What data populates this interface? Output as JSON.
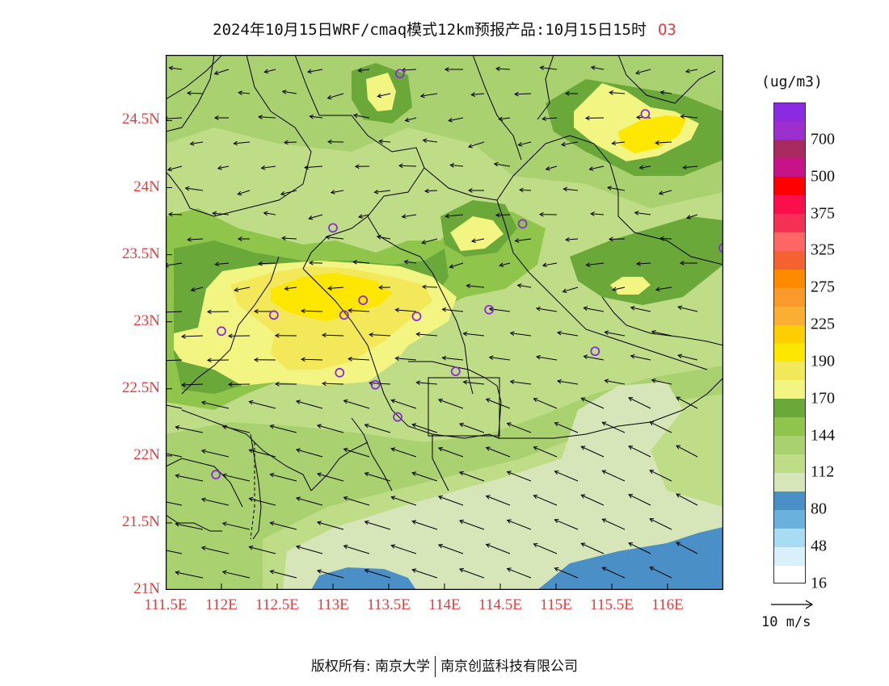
{
  "title": {
    "text": "2024年10月15日WRF/cmaq模式12km预报产品:10月15日15时",
    "species": "O3"
  },
  "map": {
    "lon_range": [
      111.5,
      116.5
    ],
    "lat_range": [
      21.0,
      24.99
    ],
    "colors": {
      "c80_112": "#d6e6b9",
      "c112_128": "#bfdc86",
      "c128_144": "#8fc54b",
      "c144_155": "#6aa83a",
      "c155_170": "#f3f582",
      "c170_180": "#f2e85a",
      "c180_190": "#fde600",
      "c48_80": "#4a8fc6",
      "boundary": "#000000",
      "station": "#8a2be2"
    },
    "x_ticks": [
      {
        "value": 111.5,
        "label": "111.5E"
      },
      {
        "value": 112.0,
        "label": "112E"
      },
      {
        "value": 112.5,
        "label": "112.5E"
      },
      {
        "value": 113.0,
        "label": "113E"
      },
      {
        "value": 113.5,
        "label": "113.5E"
      },
      {
        "value": 114.0,
        "label": "114E"
      },
      {
        "value": 114.5,
        "label": "114.5E"
      },
      {
        "value": 115.0,
        "label": "115E"
      },
      {
        "value": 115.5,
        "label": "115.5E"
      },
      {
        "value": 116.0,
        "label": "116E"
      }
    ],
    "y_ticks": [
      {
        "value": 24.5,
        "label": "24.5N"
      },
      {
        "value": 24.0,
        "label": "24N"
      },
      {
        "value": 23.5,
        "label": "23.5N"
      },
      {
        "value": 23.0,
        "label": "23N"
      },
      {
        "value": 22.5,
        "label": "22.5N"
      },
      {
        "value": 22.0,
        "label": "22N"
      },
      {
        "value": 21.5,
        "label": "21.5N"
      },
      {
        "value": 21.0,
        "label": "21N"
      }
    ],
    "stations": [
      {
        "lon": 113.6,
        "lat": 24.85
      },
      {
        "lon": 115.8,
        "lat": 24.55
      },
      {
        "lon": 113.0,
        "lat": 23.7
      },
      {
        "lon": 114.7,
        "lat": 23.73
      },
      {
        "lon": 116.5,
        "lat": 23.55
      },
      {
        "lon": 112.0,
        "lat": 22.93
      },
      {
        "lon": 112.47,
        "lat": 23.05
      },
      {
        "lon": 113.1,
        "lat": 23.05
      },
      {
        "lon": 113.27,
        "lat": 23.16
      },
      {
        "lon": 113.75,
        "lat": 23.04
      },
      {
        "lon": 114.4,
        "lat": 23.09
      },
      {
        "lon": 115.35,
        "lat": 22.78
      },
      {
        "lon": 113.06,
        "lat": 22.62
      },
      {
        "lon": 113.38,
        "lat": 22.53
      },
      {
        "lon": 114.1,
        "lat": 22.63
      },
      {
        "lon": 113.58,
        "lat": 22.29
      },
      {
        "lon": 111.95,
        "lat": 21.86
      }
    ]
  },
  "colorbar": {
    "unit": "(ug/m3)",
    "segments": [
      {
        "color": "#ffffff",
        "label": "16"
      },
      {
        "color": "#d9f0fb",
        "label": ""
      },
      {
        "color": "#a8dcf2",
        "label": "48"
      },
      {
        "color": "#6bb1de",
        "label": ""
      },
      {
        "color": "#4a8fc6",
        "label": "80"
      },
      {
        "color": "#d6e6b9",
        "label": ""
      },
      {
        "color": "#bfdc86",
        "label": "112"
      },
      {
        "color": "#a9d16f",
        "label": ""
      },
      {
        "color": "#8fc54b",
        "label": "144"
      },
      {
        "color": "#6aa83a",
        "label": ""
      },
      {
        "color": "#f3f582",
        "label": "170"
      },
      {
        "color": "#f2e85a",
        "label": ""
      },
      {
        "color": "#fde600",
        "label": "190"
      },
      {
        "color": "#fecf00",
        "label": ""
      },
      {
        "color": "#fbae34",
        "label": "225"
      },
      {
        "color": "#fb9a2c",
        "label": ""
      },
      {
        "color": "#fd8a00",
        "label": "275"
      },
      {
        "color": "#f46232",
        "label": ""
      },
      {
        "color": "#fe6565",
        "label": "325"
      },
      {
        "color": "#f63054",
        "label": ""
      },
      {
        "color": "#fb0e4c",
        "label": "375"
      },
      {
        "color": "#ff0000",
        "label": ""
      },
      {
        "color": "#c81386",
        "label": "500"
      },
      {
        "color": "#a8295f",
        "label": ""
      },
      {
        "color": "#9c2fd0",
        "label": "700"
      },
      {
        "color": "#8a2be2",
        "label": ""
      }
    ]
  },
  "vector_reference": {
    "label": "10 m/s"
  },
  "copyright": {
    "left": "版权所有: 南京大学",
    "right": "南京创蓝科技有限公司"
  }
}
